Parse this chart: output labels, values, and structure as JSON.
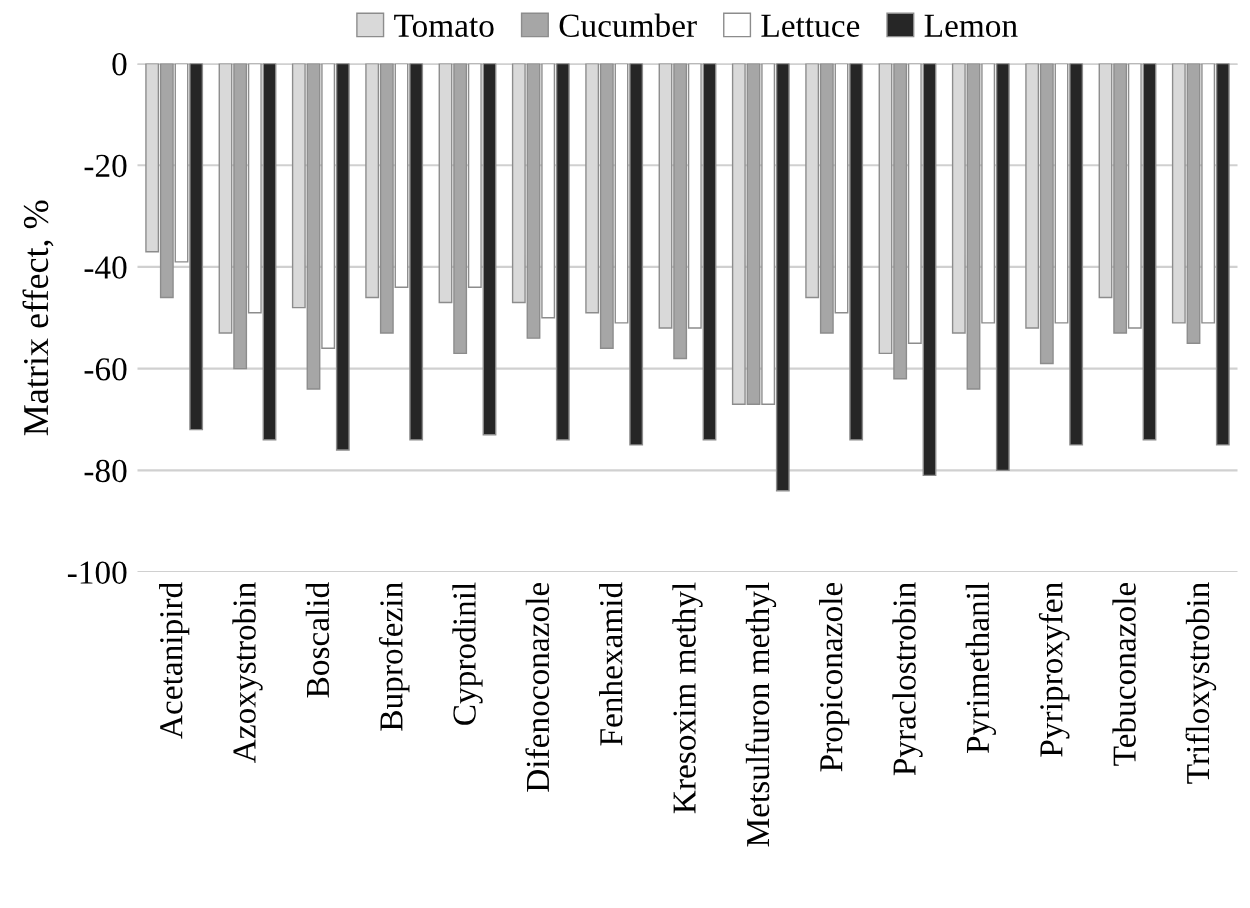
{
  "chart_data": {
    "type": "bar",
    "ylabel": "Matrix effect, %",
    "categories": [
      "Acetanipird",
      "Azoxystrobin",
      "Boscalid",
      "Buprofezin",
      "Cyprodinil",
      "Difenoconazole",
      "Fenhexamid",
      "Kresoxim methyl",
      "Metsulfuron methyl",
      "Propiconazole",
      "Pyraclostrobin",
      "Pyrimethanil",
      "Pyriproxyfen",
      "Tebuconazole",
      "Trifloxystrobin"
    ],
    "series": [
      {
        "name": "Tomato",
        "color": "#d9d9d9",
        "values": [
          -37,
          -53,
          -48,
          -46,
          -47,
          -47,
          -49,
          -52,
          -67,
          -46,
          -57,
          -53,
          -52,
          -46,
          -51
        ]
      },
      {
        "name": "Cucumber",
        "color": "#a6a6a6",
        "values": [
          -46,
          -60,
          -64,
          -53,
          -57,
          -54,
          -56,
          -58,
          -67,
          -53,
          -62,
          -64,
          -59,
          -53,
          -55
        ]
      },
      {
        "name": "Lettuce",
        "color": "#ffffff",
        "values": [
          -39,
          -49,
          -56,
          -44,
          -44,
          -50,
          -51,
          -52,
          -67,
          -49,
          -55,
          -51,
          -51,
          -52,
          -51
        ]
      },
      {
        "name": "Lemon",
        "color": "#262626",
        "values": [
          -72,
          -74,
          -76,
          -74,
          -73,
          -74,
          -75,
          -74,
          -84,
          -74,
          -81,
          -80,
          -75,
          -74,
          -75
        ]
      }
    ],
    "ylim": [
      -100,
      0
    ],
    "yticks": [
      -100,
      -80,
      -60,
      -40,
      -20,
      0
    ],
    "grid": "y",
    "legend": "top"
  }
}
